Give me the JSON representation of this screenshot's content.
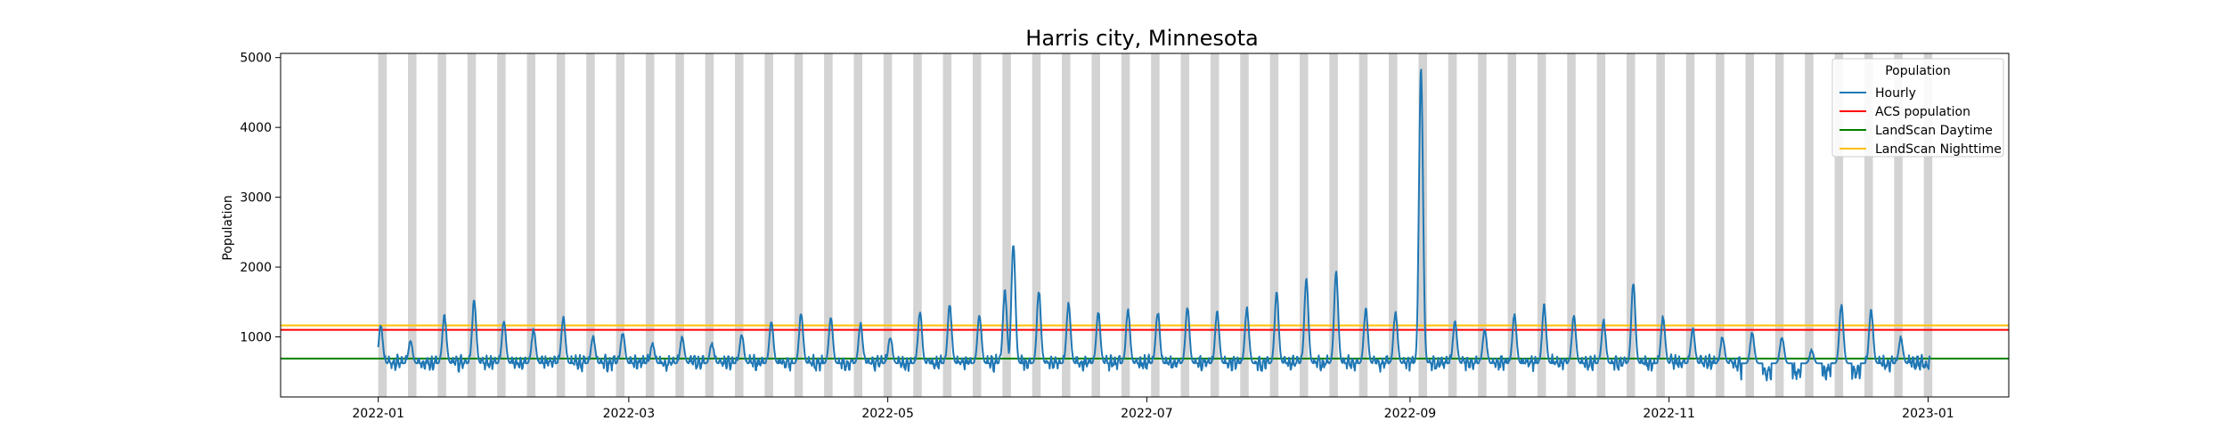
{
  "chart_data": {
    "type": "line",
    "title": "Harris city, Minnesota",
    "xlabel": "",
    "ylabel": "Population",
    "xlim": [
      "2021-12-09",
      "2023-01-20"
    ],
    "ylim": [
      140,
      5060
    ],
    "x_ticks": [
      "2022-01",
      "2022-03",
      "2022-05",
      "2022-07",
      "2022-09",
      "2022-11",
      "2023-01"
    ],
    "y_ticks": [
      1000,
      2000,
      3000,
      4000,
      5000
    ],
    "grid": false,
    "legend": {
      "title": "Population",
      "placement": "top-right",
      "entries": [
        "Hourly",
        "ACS population",
        "LandScan Daytime",
        "LandScan Nighttime"
      ]
    },
    "shaded_weekends": {
      "first_saturday": "2022-01-01",
      "last_saturday": "2022-12-31",
      "color": "#d3d3d3"
    },
    "series": [
      {
        "name": "Hourly",
        "color": "#1f77b4",
        "start": "2022-01-01",
        "end": "2023-01-01",
        "baseline": 620,
        "peaks": [
          [
            "2022-01-01",
            1150
          ],
          [
            "2022-01-08",
            950
          ],
          [
            "2022-01-16",
            1300
          ],
          [
            "2022-01-23",
            1520
          ],
          [
            "2022-01-30",
            1230
          ],
          [
            "2022-02-06",
            1100
          ],
          [
            "2022-02-13",
            1270
          ],
          [
            "2022-02-20",
            1000
          ],
          [
            "2022-02-27",
            1050
          ],
          [
            "2022-03-06",
            900
          ],
          [
            "2022-03-13",
            1000
          ],
          [
            "2022-03-20",
            900
          ],
          [
            "2022-03-27",
            1030
          ],
          [
            "2022-04-03",
            1220
          ],
          [
            "2022-04-10",
            1330
          ],
          [
            "2022-04-17",
            1270
          ],
          [
            "2022-04-24",
            1180
          ],
          [
            "2022-05-01",
            1000
          ],
          [
            "2022-05-08",
            1350
          ],
          [
            "2022-05-15",
            1450
          ],
          [
            "2022-05-22",
            1300
          ],
          [
            "2022-05-28",
            1650
          ],
          [
            "2022-05-30",
            2320
          ],
          [
            "2022-06-05",
            1650
          ],
          [
            "2022-06-12",
            1480
          ],
          [
            "2022-06-19",
            1350
          ],
          [
            "2022-06-26",
            1380
          ],
          [
            "2022-07-03",
            1350
          ],
          [
            "2022-07-10",
            1420
          ],
          [
            "2022-07-17",
            1350
          ],
          [
            "2022-07-24",
            1400
          ],
          [
            "2022-07-31",
            1620
          ],
          [
            "2022-08-07",
            1830
          ],
          [
            "2022-08-14",
            1930
          ],
          [
            "2022-08-21",
            1400
          ],
          [
            "2022-08-28",
            1350
          ],
          [
            "2022-09-03",
            4820
          ],
          [
            "2022-09-11",
            1220
          ],
          [
            "2022-09-18",
            1100
          ],
          [
            "2022-09-25",
            1320
          ],
          [
            "2022-10-02",
            1450
          ],
          [
            "2022-10-09",
            1300
          ],
          [
            "2022-10-16",
            1230
          ],
          [
            "2022-10-23",
            1780
          ],
          [
            "2022-10-30",
            1280
          ],
          [
            "2022-11-06",
            1120
          ],
          [
            "2022-11-13",
            1000
          ],
          [
            "2022-11-20",
            1050
          ],
          [
            "2022-11-27",
            1000
          ],
          [
            "2022-12-04",
            800
          ],
          [
            "2022-12-11",
            1450
          ],
          [
            "2022-12-18",
            1380
          ],
          [
            "2022-12-25",
            1000
          ]
        ]
      },
      {
        "name": "ACS population",
        "color": "#ff0000",
        "value": 1100
      },
      {
        "name": "LandScan Daytime",
        "color": "#008000",
        "value": 690
      },
      {
        "name": "LandScan Nighttime",
        "color": "#ffc000",
        "value": 1165
      }
    ]
  }
}
